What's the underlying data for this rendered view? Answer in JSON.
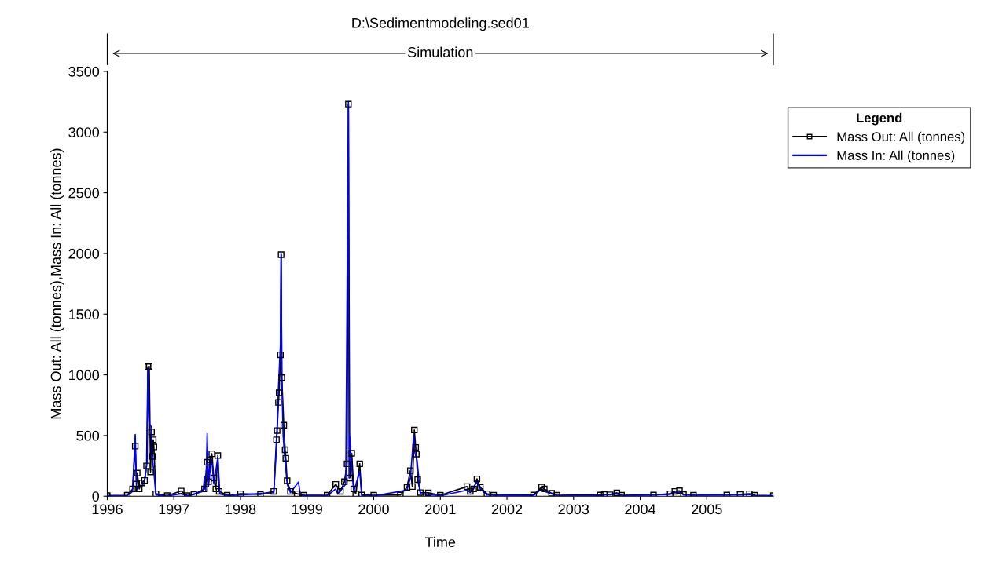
{
  "chart_data": {
    "type": "line",
    "title": "D:\\Sedimentmodeling.sed01",
    "xlabel": "Time",
    "ylabel": "Mass Out: All (tonnes),Mass In: All (tonnes)",
    "legend_title": "Legend",
    "legend": "right",
    "grid": false,
    "xlim": [
      1996,
      2006
    ],
    "xticks": [
      1996,
      1997,
      1998,
      1999,
      2000,
      2001,
      2002,
      2003,
      2004,
      2005
    ],
    "ylim": [
      0,
      3500
    ],
    "yticks": [
      0,
      500,
      1000,
      1500,
      2000,
      2500,
      3000,
      3500
    ],
    "annotations": [
      "Simulation"
    ],
    "series": [
      {
        "name": "Mass Out: All (tonnes)",
        "color": "#000000",
        "marker": "square",
        "x": [
          1996.0,
          1996.3,
          1996.38,
          1996.42,
          1996.44,
          1996.45,
          1996.48,
          1996.52,
          1996.56,
          1996.59,
          1996.61,
          1996.63,
          1996.65,
          1996.665,
          1996.68,
          1996.69,
          1996.7,
          1996.73,
          1996.9,
          1997.11,
          1997.2,
          1997.3,
          1997.46,
          1997.5,
          1997.52,
          1997.54,
          1997.57,
          1997.6,
          1997.63,
          1997.66,
          1997.68,
          1997.8,
          1998.0,
          1998.3,
          1998.5,
          1998.54,
          1998.55,
          1998.57,
          1998.58,
          1998.6,
          1998.61,
          1998.62,
          1998.65,
          1998.67,
          1998.68,
          1998.7,
          1998.75,
          1998.85,
          1998.95,
          1999.3,
          1999.43,
          1999.5,
          1999.56,
          1999.6,
          1999.62,
          1999.64,
          1999.67,
          1999.7,
          1999.73,
          1999.79,
          1999.82,
          2000.0,
          2000.4,
          2000.5,
          2000.55,
          2000.58,
          2000.61,
          2000.63,
          2000.64,
          2000.66,
          2000.7,
          2000.82,
          2001.0,
          2001.4,
          2001.45,
          2001.5,
          2001.55,
          2001.6,
          2001.7,
          2001.8,
          2002.4,
          2002.52,
          2002.56,
          2002.67,
          2002.75,
          2003.4,
          2003.46,
          2003.55,
          2003.65,
          2003.72,
          2004.2,
          2004.45,
          2004.52,
          2004.59,
          2004.65,
          2004.8,
          2005.3,
          2005.5,
          2005.64,
          2005.72,
          2006.0
        ],
        "values": [
          5,
          8,
          60,
          413,
          100,
          191,
          60,
          110,
          130,
          250,
          1067,
          1070,
          200,
          530,
          328,
          465,
          406,
          20,
          5,
          43,
          5,
          15,
          60,
          280,
          120,
          300,
          350,
          150,
          60,
          335,
          40,
          8,
          20,
          15,
          40,
          465,
          541,
          773,
          852,
          1165,
          1990,
          976,
          585,
          383,
          313,
          128,
          40,
          20,
          8,
          8,
          98,
          40,
          120,
          267,
          3230,
          150,
          354,
          60,
          20,
          267,
          10,
          8,
          10,
          74,
          211,
          80,
          545,
          402,
          347,
          137,
          30,
          28,
          8,
          80,
          40,
          60,
          143,
          74,
          20,
          8,
          10,
          76,
          60,
          25,
          8,
          10,
          15,
          12,
          28,
          8,
          10,
          20,
          40,
          45,
          15,
          8,
          10,
          15,
          20,
          8,
          5
        ]
      },
      {
        "name": "Mass In: All (tonnes)",
        "color": "#0000ff",
        "marker": "none",
        "x": [
          1996.0,
          1996.3,
          1996.38,
          1996.42,
          1996.44,
          1996.48,
          1996.52,
          1996.56,
          1996.6,
          1996.61,
          1996.63,
          1996.66,
          1996.68,
          1996.7,
          1996.73,
          1996.9,
          1997.11,
          1997.2,
          1997.44,
          1997.46,
          1997.48,
          1997.5,
          1997.52,
          1997.55,
          1997.57,
          1997.6,
          1997.66,
          1997.69,
          1997.8,
          1998.0,
          1998.5,
          1998.54,
          1998.57,
          1998.6,
          1998.61,
          1998.62,
          1998.64,
          1998.66,
          1998.7,
          1998.75,
          1998.87,
          1998.9,
          1999.3,
          1999.43,
          1999.46,
          1999.58,
          1999.62,
          1999.63,
          1999.64,
          1999.66,
          1999.7,
          1999.79,
          1999.82,
          2000.0,
          2000.5,
          2000.55,
          2000.6,
          2000.62,
          2000.65,
          2000.7,
          2001.0,
          2001.4,
          2001.45,
          2001.55,
          2001.6,
          2001.7,
          2002.4,
          2002.52,
          2002.56,
          2002.67,
          2002.75,
          2003.4,
          2003.46,
          2003.65,
          2003.72,
          2004.45,
          2004.52,
          2004.59,
          2004.65,
          2005.5,
          2005.64,
          2005.72,
          2006.0
        ],
        "values": [
          2,
          4,
          40,
          508,
          50,
          90,
          80,
          120,
          300,
          1060,
          600,
          574,
          300,
          200,
          10,
          2,
          20,
          2,
          40,
          163,
          50,
          517,
          80,
          250,
          300,
          100,
          320,
          20,
          3,
          10,
          30,
          400,
          900,
          1250,
          2000,
          1000,
          500,
          350,
          100,
          30,
          117,
          5,
          3,
          60,
          20,
          100,
          3250,
          150,
          492,
          300,
          40,
          200,
          5,
          3,
          50,
          150,
          500,
          350,
          300,
          20,
          3,
          50,
          30,
          120,
          60,
          10,
          5,
          60,
          40,
          20,
          3,
          5,
          10,
          20,
          3,
          15,
          30,
          35,
          10,
          10,
          15,
          3,
          2
        ]
      }
    ]
  }
}
